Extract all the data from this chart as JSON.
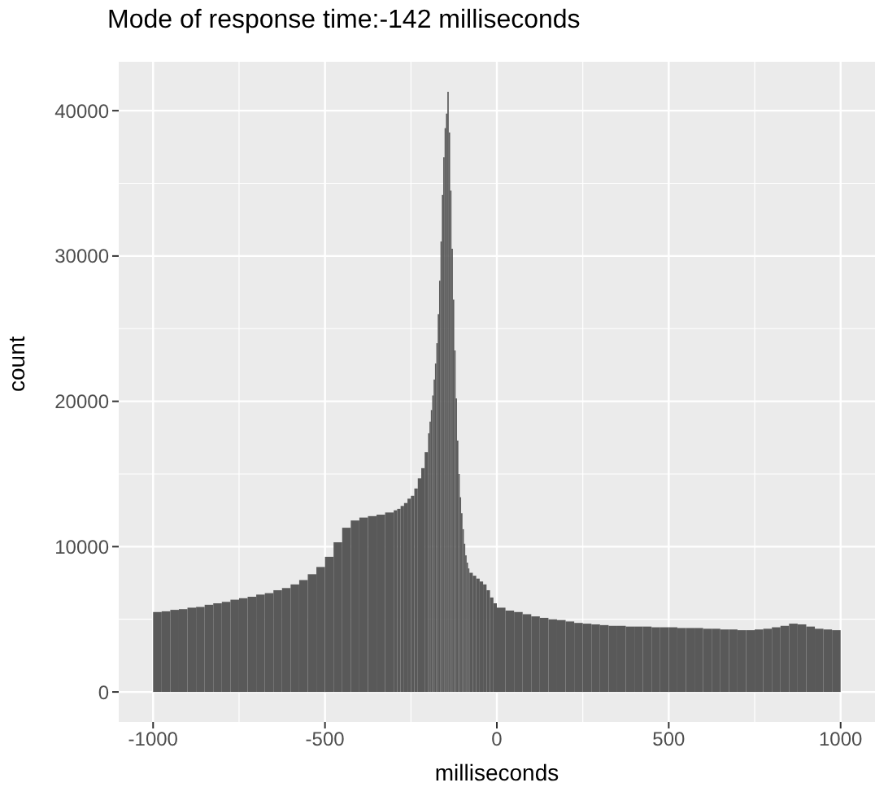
{
  "chart_data": {
    "type": "histogram",
    "title": "Mode of response time:-142 milliseconds",
    "xlabel": "milliseconds",
    "ylabel": "count",
    "bins": [
      -1000,
      -975,
      -950,
      -925,
      -900,
      -875,
      -850,
      -825,
      -800,
      -775,
      -750,
      -725,
      -700,
      -675,
      -650,
      -625,
      -600,
      -575,
      -550,
      -525,
      -500,
      -475,
      -450,
      -425,
      -400,
      -375,
      -350,
      -325,
      -300,
      -290,
      -280,
      -270,
      -260,
      -250,
      -240,
      -230,
      -220,
      -210,
      -200,
      -196,
      -192,
      -188,
      -184,
      -180,
      -176,
      -172,
      -168,
      -164,
      -160,
      -156,
      -152,
      -148,
      -144,
      -140,
      -136,
      -132,
      -128,
      -124,
      -120,
      -116,
      -112,
      -108,
      -104,
      -100,
      -96,
      -92,
      -88,
      -84,
      -80,
      -70,
      -60,
      -50,
      -40,
      -30,
      -20,
      -10,
      0,
      25,
      50,
      75,
      100,
      125,
      150,
      175,
      200,
      225,
      250,
      275,
      300,
      325,
      350,
      375,
      400,
      425,
      450,
      475,
      500,
      525,
      550,
      575,
      600,
      625,
      650,
      675,
      700,
      725,
      750,
      775,
      800,
      825,
      850,
      875,
      900,
      925,
      950,
      975,
      1000
    ],
    "values": [
      5500,
      5550,
      5650,
      5700,
      5800,
      5850,
      6000,
      6100,
      6200,
      6350,
      6450,
      6550,
      6700,
      6800,
      7000,
      7150,
      7400,
      7700,
      8100,
      8600,
      9300,
      10300,
      11300,
      11800,
      12000,
      12100,
      12200,
      12350,
      12500,
      12600,
      12800,
      13000,
      13300,
      13500,
      14000,
      14700,
      15400,
      16500,
      17800,
      18600,
      19400,
      20400,
      21500,
      22600,
      24000,
      26000,
      28300,
      31000,
      34200,
      36800,
      38800,
      39800,
      41300,
      38500,
      34500,
      30500,
      27000,
      23500,
      20200,
      17300,
      15000,
      13400,
      12300,
      11200,
      10200,
      9400,
      8900,
      8500,
      8200,
      8000,
      7800,
      7600,
      7400,
      7000,
      6500,
      6100,
      5800,
      5600,
      5500,
      5350,
      5200,
      5100,
      5000,
      4950,
      4850,
      4750,
      4700,
      4650,
      4600,
      4550,
      4550,
      4500,
      4500,
      4500,
      4450,
      4450,
      4450,
      4400,
      4400,
      4400,
      4350,
      4350,
      4300,
      4300,
      4250,
      4250,
      4300,
      4350,
      4450,
      4550,
      4700,
      4650,
      4500,
      4350,
      4300,
      4250
    ],
    "color": "#595959",
    "xlim": [
      -1100,
      1100
    ],
    "xticks": [
      -1000,
      -500,
      0,
      500,
      1000
    ],
    "ylim": [
      -2065,
      43365
    ],
    "yticks": [
      0,
      10000,
      20000,
      30000,
      40000
    ],
    "grid": true
  }
}
